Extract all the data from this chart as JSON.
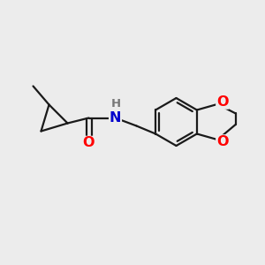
{
  "bg_color": "#ececec",
  "bond_color": "#1a1a1a",
  "oxygen_color": "#ff0000",
  "nitrogen_color": "#0000cc",
  "h_color": "#777777",
  "line_width": 1.6,
  "font_size_atom": 11.5,
  "font_size_H": 9.5,
  "xlim": [
    0,
    10
  ],
  "ylim": [
    1,
    9
  ]
}
